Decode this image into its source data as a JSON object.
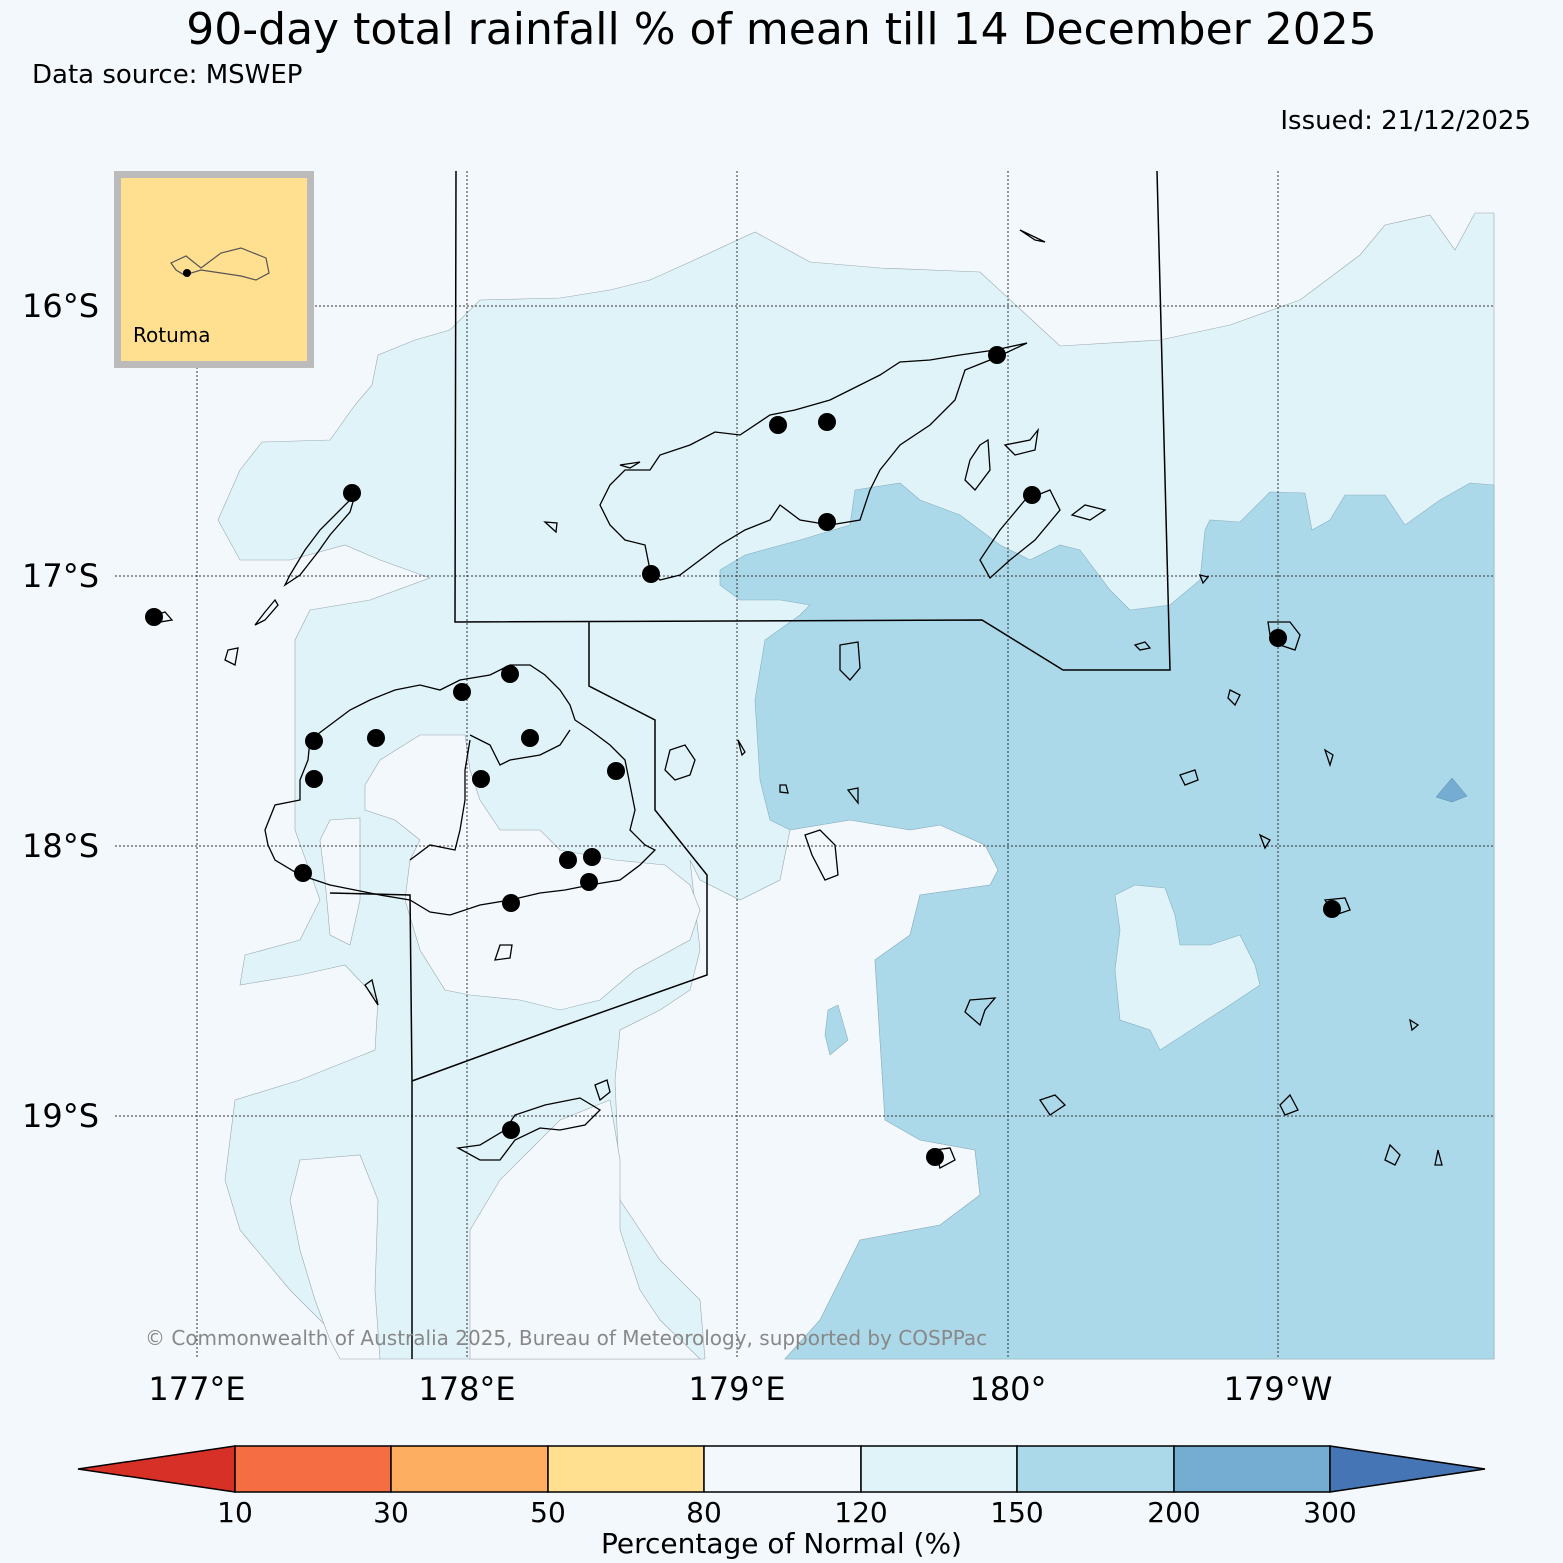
{
  "header": {
    "title": "90-day total rainfall % of mean till 14 December 2025",
    "data_source": "Data source: MSWEP",
    "issued": "Issued: 21/12/2025"
  },
  "map": {
    "lat_labels": [
      "16°S",
      "17°S",
      "18°S",
      "19°S"
    ],
    "lon_labels": [
      "177°E",
      "178°E",
      "179°E",
      "180°",
      "179°W"
    ],
    "inset_label": "Rotuma",
    "copyright": "© Commonwealth of Australia 2025, Bureau of Meteorology, supported by COSPPac"
  },
  "colorbar": {
    "title": "Percentage of Normal (%)",
    "ticks": [
      "10",
      "30",
      "50",
      "80",
      "120",
      "150",
      "200",
      "300"
    ],
    "colors": [
      "#d73027",
      "#f46d43",
      "#fdae61",
      "#fee090",
      "#f3f8fc",
      "#e0f3f8",
      "#abd9e9",
      "#74add1",
      "#4575b4"
    ]
  }
}
